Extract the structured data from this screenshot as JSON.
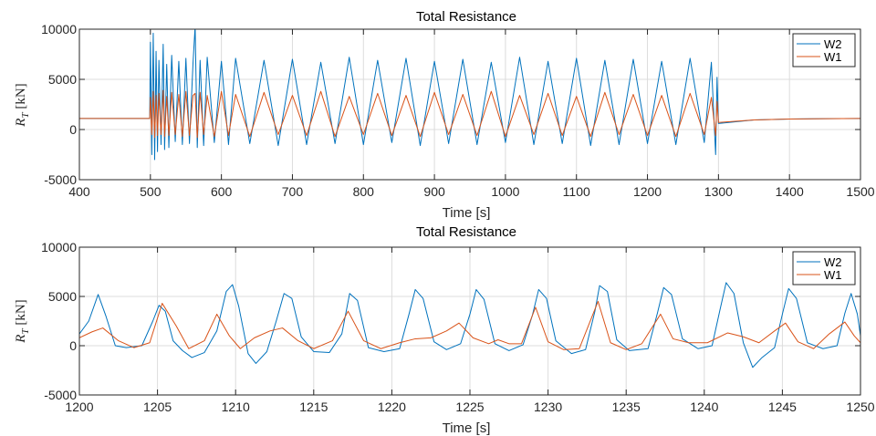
{
  "chart_data": [
    {
      "type": "line",
      "title": "Total Resistance",
      "xlabel": "Time [s]",
      "ylabel": "R_T [kN]",
      "xlim": [
        400,
        1500
      ],
      "ylim": [
        -5000,
        10000
      ],
      "xticks": [
        400,
        500,
        600,
        700,
        800,
        900,
        1000,
        1100,
        1200,
        1300,
        1400,
        1500
      ],
      "yticks": [
        -5000,
        0,
        5000,
        10000
      ],
      "grid": true,
      "legend": "top-right",
      "series": [
        {
          "name": "W2",
          "color": "#0072BD",
          "x": [
            400,
            499,
            500,
            502,
            504,
            506,
            508,
            510,
            512,
            515,
            518,
            520,
            523,
            526,
            530,
            535,
            540,
            545,
            550,
            555,
            560,
            563,
            566,
            570,
            575,
            580,
            590,
            600,
            610,
            620,
            640,
            660,
            680,
            700,
            720,
            740,
            760,
            780,
            800,
            820,
            840,
            860,
            880,
            900,
            920,
            940,
            960,
            980,
            1000,
            1020,
            1040,
            1060,
            1080,
            1100,
            1120,
            1140,
            1160,
            1180,
            1200,
            1220,
            1240,
            1260,
            1280,
            1290,
            1296,
            1298,
            1300,
            1350,
            1400,
            1450,
            1500
          ],
          "y": [
            1100,
            1100,
            8700,
            -2500,
            9600,
            -3000,
            7800,
            -2200,
            6900,
            -1500,
            8500,
            -2000,
            6500,
            -1800,
            7400,
            -1200,
            6800,
            -1500,
            7100,
            -1400,
            6600,
            10300,
            -1800,
            6900,
            -1600,
            7200,
            -1300,
            6800,
            -1500,
            7100,
            -1400,
            6900,
            -1600,
            7000,
            -1500,
            6700,
            -1400,
            7200,
            -1500,
            6900,
            -1300,
            7100,
            -1600,
            6800,
            -1400,
            7000,
            -1500,
            6700,
            -1300,
            7200,
            -1500,
            6800,
            -1400,
            7100,
            -1600,
            6900,
            -1500,
            7000,
            -1400,
            6800,
            -1500,
            7100,
            -1300,
            6700,
            -2500,
            5200,
            600,
            950,
            1050,
            1080,
            1100
          ]
        },
        {
          "name": "W1",
          "color": "#D95319",
          "x": [
            400,
            499,
            500,
            502,
            504,
            506,
            508,
            510,
            512,
            515,
            518,
            520,
            523,
            526,
            530,
            535,
            540,
            545,
            550,
            555,
            560,
            563,
            566,
            570,
            575,
            580,
            590,
            600,
            610,
            620,
            640,
            660,
            680,
            700,
            720,
            740,
            760,
            780,
            800,
            820,
            840,
            860,
            880,
            900,
            920,
            940,
            960,
            980,
            1000,
            1020,
            1040,
            1060,
            1080,
            1100,
            1120,
            1140,
            1160,
            1180,
            1200,
            1220,
            1240,
            1260,
            1280,
            1290,
            1296,
            1298,
            1300,
            1350,
            1400,
            1450,
            1500
          ],
          "y": [
            1100,
            1100,
            3200,
            -500,
            3800,
            -800,
            3400,
            -600,
            3600,
            -500,
            3900,
            -700,
            3300,
            -600,
            3700,
            -500,
            3500,
            -700,
            3800,
            -600,
            3400,
            3600,
            -800,
            3700,
            -500,
            3400,
            -700,
            3800,
            -600,
            3500,
            -700,
            3700,
            -500,
            3400,
            -600,
            3800,
            -700,
            3300,
            -500,
            3600,
            -600,
            3400,
            -700,
            3700,
            -500,
            3500,
            -600,
            3800,
            -700,
            3400,
            -500,
            3600,
            -600,
            3300,
            -700,
            3700,
            -500,
            3500,
            -600,
            3400,
            -700,
            3600,
            -500,
            3200,
            -600,
            2800,
            700,
            950,
            1050,
            1080,
            1100
          ]
        }
      ]
    },
    {
      "type": "line",
      "title": "Total Resistance",
      "xlabel": "Time [s]",
      "ylabel": "R_T [kN]",
      "xlim": [
        1200,
        1250
      ],
      "ylim": [
        -5000,
        10000
      ],
      "xticks": [
        1200,
        1205,
        1210,
        1215,
        1220,
        1225,
        1230,
        1235,
        1240,
        1245,
        1250
      ],
      "yticks": [
        -5000,
        0,
        5000,
        10000
      ],
      "grid": true,
      "legend": "top-right",
      "series": [
        {
          "name": "W2",
          "color": "#0072BD",
          "x": [
            1200,
            1200.6,
            1201.2,
            1201.7,
            1202.3,
            1203,
            1204,
            1204.7,
            1205.1,
            1205.5,
            1206,
            1206.6,
            1207.2,
            1208,
            1208.8,
            1209.4,
            1209.8,
            1210.2,
            1210.8,
            1211.3,
            1212,
            1212.6,
            1213.1,
            1213.6,
            1214.2,
            1215,
            1216,
            1216.8,
            1217.3,
            1217.8,
            1218.5,
            1219.5,
            1220.5,
            1221.1,
            1221.5,
            1222,
            1222.7,
            1223.5,
            1224.4,
            1225,
            1225.4,
            1225.9,
            1226.6,
            1227.5,
            1228.4,
            1229,
            1229.4,
            1229.9,
            1230.5,
            1231.5,
            1232.4,
            1233,
            1233.3,
            1233.8,
            1234.4,
            1235.2,
            1236.4,
            1237,
            1237.4,
            1237.9,
            1238.6,
            1239.6,
            1240.5,
            1241,
            1241.4,
            1241.9,
            1242.5,
            1243.1,
            1243.7,
            1244.5,
            1245,
            1245.4,
            1245.9,
            1246.6,
            1247.6,
            1248.5,
            1249,
            1249.4,
            1249.8,
            1250
          ],
          "y": [
            1200,
            2500,
            5200,
            3000,
            0,
            -200,
            0,
            2500,
            4100,
            3500,
            500,
            -500,
            -1200,
            -700,
            1500,
            5500,
            6200,
            4000,
            -800,
            -1800,
            -600,
            2500,
            5300,
            4800,
            900,
            -600,
            -700,
            1200,
            5300,
            4600,
            -200,
            -600,
            -300,
            3200,
            5700,
            4800,
            400,
            -400,
            200,
            3200,
            5700,
            4700,
            200,
            -500,
            100,
            3100,
            5700,
            4800,
            500,
            -800,
            -400,
            3500,
            6100,
            5500,
            600,
            -500,
            -300,
            3300,
            5900,
            5200,
            700,
            -300,
            0,
            3600,
            6400,
            5300,
            300,
            -2200,
            -1200,
            -200,
            3200,
            5800,
            4800,
            300,
            -300,
            0,
            3300,
            5300,
            3200,
            1000
          ]
        },
        {
          "name": "W1",
          "color": "#D95319",
          "x": [
            1200,
            1200.8,
            1201.5,
            1202.5,
            1203.5,
            1204.5,
            1205.3,
            1206.2,
            1207,
            1208,
            1208.8,
            1209.6,
            1210.3,
            1211.2,
            1212.2,
            1213,
            1214,
            1215,
            1216.2,
            1217.2,
            1218.2,
            1219.3,
            1220.5,
            1221.5,
            1222.5,
            1223.5,
            1224.3,
            1225.2,
            1226.2,
            1226.8,
            1227.5,
            1228.3,
            1229.2,
            1230,
            1231,
            1232,
            1233.2,
            1234,
            1235,
            1236,
            1237.2,
            1238,
            1239,
            1240.2,
            1241.5,
            1242.5,
            1243.5,
            1244.5,
            1245.2,
            1246,
            1247,
            1248,
            1249,
            1249.6,
            1250
          ],
          "y": [
            800,
            1400,
            1800,
            500,
            -200,
            300,
            4300,
            2000,
            -300,
            500,
            3200,
            1000,
            -300,
            800,
            1500,
            1800,
            500,
            -300,
            500,
            3500,
            500,
            -300,
            300,
            700,
            800,
            1500,
            2300,
            800,
            200,
            600,
            200,
            200,
            3900,
            400,
            -400,
            -300,
            4500,
            300,
            -400,
            200,
            3200,
            700,
            300,
            300,
            1300,
            900,
            300,
            1500,
            2300,
            400,
            -300,
            1200,
            2400,
            1000,
            300
          ]
        }
      ]
    }
  ]
}
